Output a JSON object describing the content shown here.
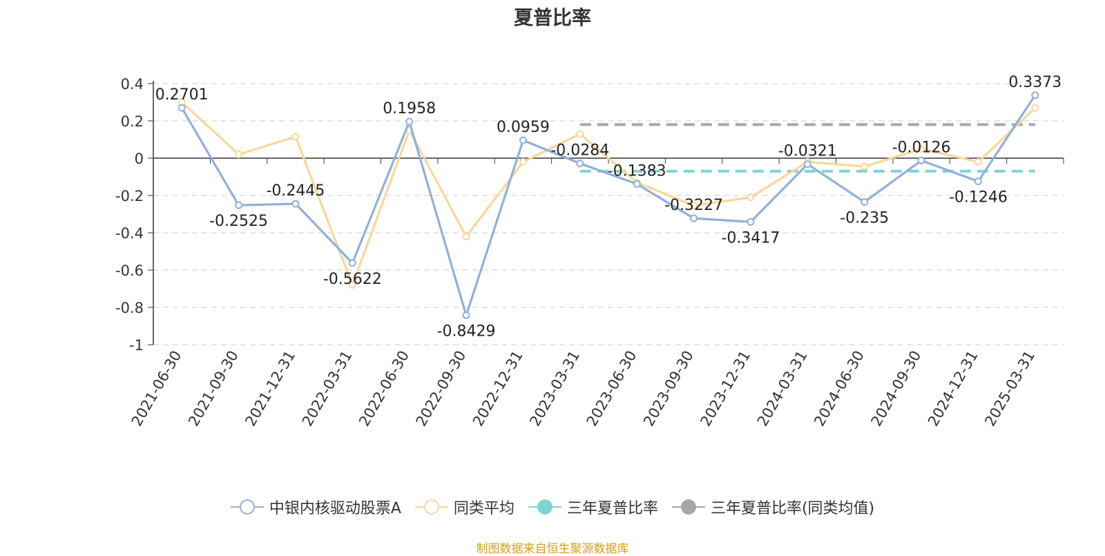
{
  "chart_data": {
    "type": "line",
    "title": "夏普比率",
    "categories": [
      "2021-06-30",
      "2021-09-30",
      "2021-12-31",
      "2022-03-31",
      "2022-06-30",
      "2022-09-30",
      "2022-12-31",
      "2023-03-31",
      "2023-06-30",
      "2023-09-30",
      "2023-12-31",
      "2024-03-31",
      "2024-06-30",
      "2024-09-30",
      "2024-12-31",
      "2025-03-31"
    ],
    "series": [
      {
        "name": "中银内核驱动股票A",
        "color": "#8eb0dc",
        "show_labels": true,
        "values": [
          0.2701,
          -0.2525,
          -0.2445,
          -0.5622,
          0.1958,
          -0.8429,
          0.0959,
          -0.0284,
          -0.1383,
          -0.3227,
          -0.3417,
          -0.0321,
          -0.235,
          -0.0126,
          -0.1246,
          0.3373
        ],
        "labels": [
          "0.2701",
          "-0.2525",
          "-0.2445",
          "-0.5622",
          "0.1958",
          "-0.8429",
          "0.0959",
          "-0.0284",
          "-0.1383",
          "-0.3227",
          "-0.3417",
          "-0.0321",
          "-0.235",
          "-0.0126",
          "-0.1246",
          "0.3373"
        ]
      },
      {
        "name": "同类平均",
        "color": "#fad797",
        "show_labels": false,
        "values": [
          0.3,
          0.02,
          0.115,
          -0.68,
          0.15,
          -0.42,
          -0.02,
          0.13,
          -0.13,
          -0.255,
          -0.21,
          -0.02,
          -0.045,
          0.05,
          -0.02,
          0.27
        ]
      }
    ],
    "reference_lines": [
      {
        "name": "三年夏普比率",
        "color": "#7fd3d7",
        "value": -0.07,
        "from": "2023-03-31",
        "to": "2025-03-31"
      },
      {
        "name": "三年夏普比率(同类均值)",
        "color": "#a6a6a6",
        "value": 0.18,
        "from": "2023-03-31",
        "to": "2025-03-31"
      }
    ],
    "y_ticks": [
      "0.4",
      "0.2",
      "0",
      "-0.2",
      "-0.4",
      "-0.6",
      "-0.8",
      "-1"
    ],
    "ylim": [
      -1,
      0.4
    ],
    "grid": true,
    "legend_position": "bottom"
  },
  "legend": [
    {
      "label": "中银内核驱动股票A",
      "color": "#8eb0dc",
      "symbol": "hollow-circle"
    },
    {
      "label": "同类平均",
      "color": "#fad797",
      "symbol": "hollow-circle"
    },
    {
      "label": "三年夏普比率",
      "color": "#7fd3d7",
      "symbol": "filled-circle"
    },
    {
      "label": "三年夏普比率(同类均值)",
      "color": "#a6a6a6",
      "symbol": "filled-circle"
    }
  ],
  "source": {
    "text": "制图数据来自恒生聚源数据库",
    "color": "#d4a017"
  }
}
